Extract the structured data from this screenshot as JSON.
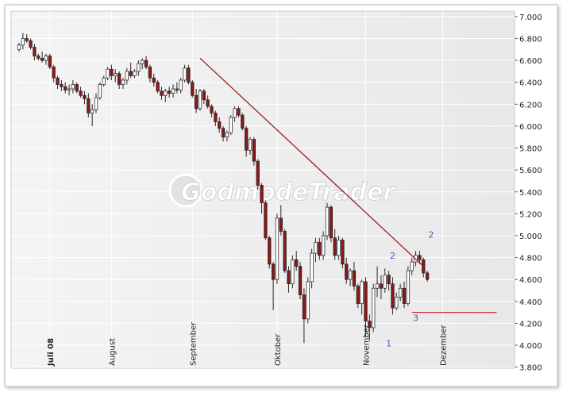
{
  "chart_data": {
    "type": "candlestick",
    "watermark": "GodmodeTrader",
    "y_ticks": [
      "7.000",
      "6.800",
      "6.600",
      "6.400",
      "6.200",
      "6.000",
      "5.800",
      "5.600",
      "5.400",
      "5.200",
      "5.000",
      "4.800",
      "4.600",
      "4.400",
      "4.200",
      "4.000",
      "3.800"
    ],
    "y_values": [
      7000,
      6800,
      6600,
      6400,
      6200,
      6000,
      5800,
      5600,
      5400,
      5200,
      5000,
      4800,
      4600,
      4400,
      4200,
      4000,
      3800
    ],
    "ylim": [
      3790,
      7050
    ],
    "x_labels": [
      {
        "label": "Juli 08",
        "bar": 8,
        "bold": true
      },
      {
        "label": "August",
        "bar": 24,
        "bold": false
      },
      {
        "label": "September",
        "bar": 45,
        "bold": false
      },
      {
        "label": "Oktober",
        "bar": 67,
        "bold": false
      },
      {
        "label": "November",
        "bar": 90,
        "bold": false
      },
      {
        "label": "Dezember",
        "bar": 110,
        "bold": false
      }
    ],
    "colors": {
      "up": "#ffffff",
      "down": "#8b1a1a",
      "wick": "#222222",
      "trend": "#9b2020",
      "support": "#c0303a",
      "annotation": "#5555cc"
    },
    "candles": [
      [
        6700,
        6760,
        6680,
        6740
      ],
      [
        6740,
        6850,
        6700,
        6800
      ],
      [
        6800,
        6840,
        6760,
        6780
      ],
      [
        6780,
        6800,
        6700,
        6720
      ],
      [
        6720,
        6750,
        6600,
        6640
      ],
      [
        6640,
        6660,
        6600,
        6620
      ],
      [
        6620,
        6680,
        6580,
        6600
      ],
      [
        6600,
        6660,
        6560,
        6640
      ],
      [
        6640,
        6660,
        6520,
        6540
      ],
      [
        6540,
        6560,
        6400,
        6440
      ],
      [
        6440,
        6460,
        6340,
        6380
      ],
      [
        6380,
        6420,
        6320,
        6360
      ],
      [
        6360,
        6400,
        6300,
        6330
      ],
      [
        6330,
        6380,
        6280,
        6340
      ],
      [
        6340,
        6420,
        6300,
        6380
      ],
      [
        6380,
        6400,
        6300,
        6320
      ],
      [
        6320,
        6360,
        6260,
        6280
      ],
      [
        6280,
        6320,
        6200,
        6250
      ],
      [
        6250,
        6300,
        6080,
        6120
      ],
      [
        6120,
        6200,
        6000,
        6150
      ],
      [
        6150,
        6300,
        6120,
        6260
      ],
      [
        6260,
        6400,
        6240,
        6380
      ],
      [
        6380,
        6460,
        6360,
        6440
      ],
      [
        6440,
        6540,
        6420,
        6520
      ],
      [
        6520,
        6560,
        6420,
        6460
      ],
      [
        6460,
        6520,
        6400,
        6480
      ],
      [
        6480,
        6500,
        6340,
        6380
      ],
      [
        6380,
        6440,
        6340,
        6420
      ],
      [
        6420,
        6530,
        6380,
        6500
      ],
      [
        6500,
        6580,
        6440,
        6460
      ],
      [
        6460,
        6520,
        6440,
        6500
      ],
      [
        6500,
        6600,
        6460,
        6570
      ],
      [
        6570,
        6620,
        6520,
        6600
      ],
      [
        6600,
        6640,
        6520,
        6540
      ],
      [
        6540,
        6560,
        6400,
        6440
      ],
      [
        6440,
        6480,
        6360,
        6400
      ],
      [
        6400,
        6420,
        6300,
        6320
      ],
      [
        6320,
        6360,
        6240,
        6280
      ],
      [
        6280,
        6340,
        6220,
        6320
      ],
      [
        6320,
        6360,
        6260,
        6300
      ],
      [
        6300,
        6380,
        6260,
        6340
      ],
      [
        6340,
        6400,
        6300,
        6330
      ],
      [
        6330,
        6440,
        6300,
        6420
      ],
      [
        6420,
        6560,
        6400,
        6530
      ],
      [
        6530,
        6560,
        6380,
        6400
      ],
      [
        6400,
        6420,
        6260,
        6280
      ],
      [
        6280,
        6340,
        6120,
        6160
      ],
      [
        6160,
        6340,
        6140,
        6320
      ],
      [
        6320,
        6340,
        6200,
        6240
      ],
      [
        6240,
        6280,
        6160,
        6180
      ],
      [
        6180,
        6200,
        6080,
        6120
      ],
      [
        6120,
        6140,
        6000,
        6040
      ],
      [
        6040,
        6080,
        5940,
        5980
      ],
      [
        5980,
        6000,
        5860,
        5900
      ],
      [
        5900,
        5960,
        5860,
        5940
      ],
      [
        5940,
        6100,
        5920,
        6080
      ],
      [
        6080,
        6180,
        6040,
        6160
      ],
      [
        6160,
        6180,
        6080,
        6100
      ],
      [
        6100,
        6120,
        5960,
        5980
      ],
      [
        5980,
        6000,
        5720,
        5780
      ],
      [
        5780,
        5900,
        5740,
        5880
      ],
      [
        5880,
        5900,
        5640,
        5680
      ],
      [
        5680,
        5700,
        5420,
        5460
      ],
      [
        5460,
        5480,
        5200,
        5300
      ],
      [
        5300,
        5320,
        4960,
        4980
      ],
      [
        4980,
        5000,
        4700,
        4740
      ],
      [
        4740,
        4760,
        4320,
        4600
      ],
      [
        4600,
        5200,
        4560,
        5160
      ],
      [
        5160,
        5280,
        5000,
        5040
      ],
      [
        5040,
        5060,
        4660,
        4680
      ],
      [
        4680,
        4720,
        4480,
        4560
      ],
      [
        4560,
        4820,
        4520,
        4780
      ],
      [
        4780,
        4860,
        4680,
        4720
      ],
      [
        4720,
        4760,
        4420,
        4460
      ],
      [
        4460,
        4520,
        4020,
        4240
      ],
      [
        4240,
        4620,
        4200,
        4580
      ],
      [
        4580,
        4880,
        4520,
        4840
      ],
      [
        4840,
        4980,
        4760,
        4940
      ],
      [
        4940,
        4980,
        4780,
        4820
      ],
      [
        4820,
        5040,
        4780,
        5000
      ],
      [
        5000,
        5300,
        4960,
        5260
      ],
      [
        5260,
        5280,
        4940,
        4980
      ],
      [
        4980,
        5060,
        4780,
        4820
      ],
      [
        4820,
        5000,
        4780,
        4960
      ],
      [
        4960,
        4980,
        4700,
        4740
      ],
      [
        4740,
        4800,
        4560,
        4600
      ],
      [
        4600,
        4700,
        4540,
        4680
      ],
      [
        4680,
        4760,
        4500,
        4540
      ],
      [
        4540,
        4560,
        4340,
        4380
      ],
      [
        4380,
        4600,
        4280,
        4580
      ],
      [
        4580,
        4620,
        4080,
        4220
      ],
      [
        4220,
        4280,
        4040,
        4160
      ],
      [
        4160,
        4560,
        4120,
        4520
      ],
      [
        4520,
        4720,
        4440,
        4560
      ],
      [
        4560,
        4640,
        4420,
        4520
      ],
      [
        4520,
        4700,
        4480,
        4640
      ],
      [
        4640,
        4680,
        4500,
        4560
      ],
      [
        4560,
        4620,
        4280,
        4340
      ],
      [
        4340,
        4480,
        4320,
        4440
      ],
      [
        4440,
        4560,
        4400,
        4520
      ],
      [
        4520,
        4580,
        4340,
        4380
      ],
      [
        4380,
        4720,
        4360,
        4680
      ],
      [
        4680,
        4800,
        4640,
        4760
      ],
      [
        4760,
        4860,
        4720,
        4820
      ],
      [
        4820,
        4860,
        4740,
        4780
      ],
      [
        4780,
        4800,
        4620,
        4660
      ],
      [
        4660,
        4680,
        4580,
        4600
      ]
    ],
    "trend_line": {
      "from": {
        "bar": 47,
        "value": 6620
      },
      "to": {
        "bar": 105,
        "value": 4720
      }
    },
    "support_line": {
      "from": {
        "bar": 102,
        "value": 4300
      },
      "to": {
        "bar": 124,
        "value": 4300
      }
    },
    "annotations": [
      {
        "label": "1",
        "bar": 96,
        "value": 3990
      },
      {
        "label": "2",
        "bar": 97,
        "value": 4790
      },
      {
        "label": "3",
        "bar": 103,
        "value": 4220
      },
      {
        "label": "2",
        "bar": 107,
        "value": 4980
      }
    ]
  }
}
